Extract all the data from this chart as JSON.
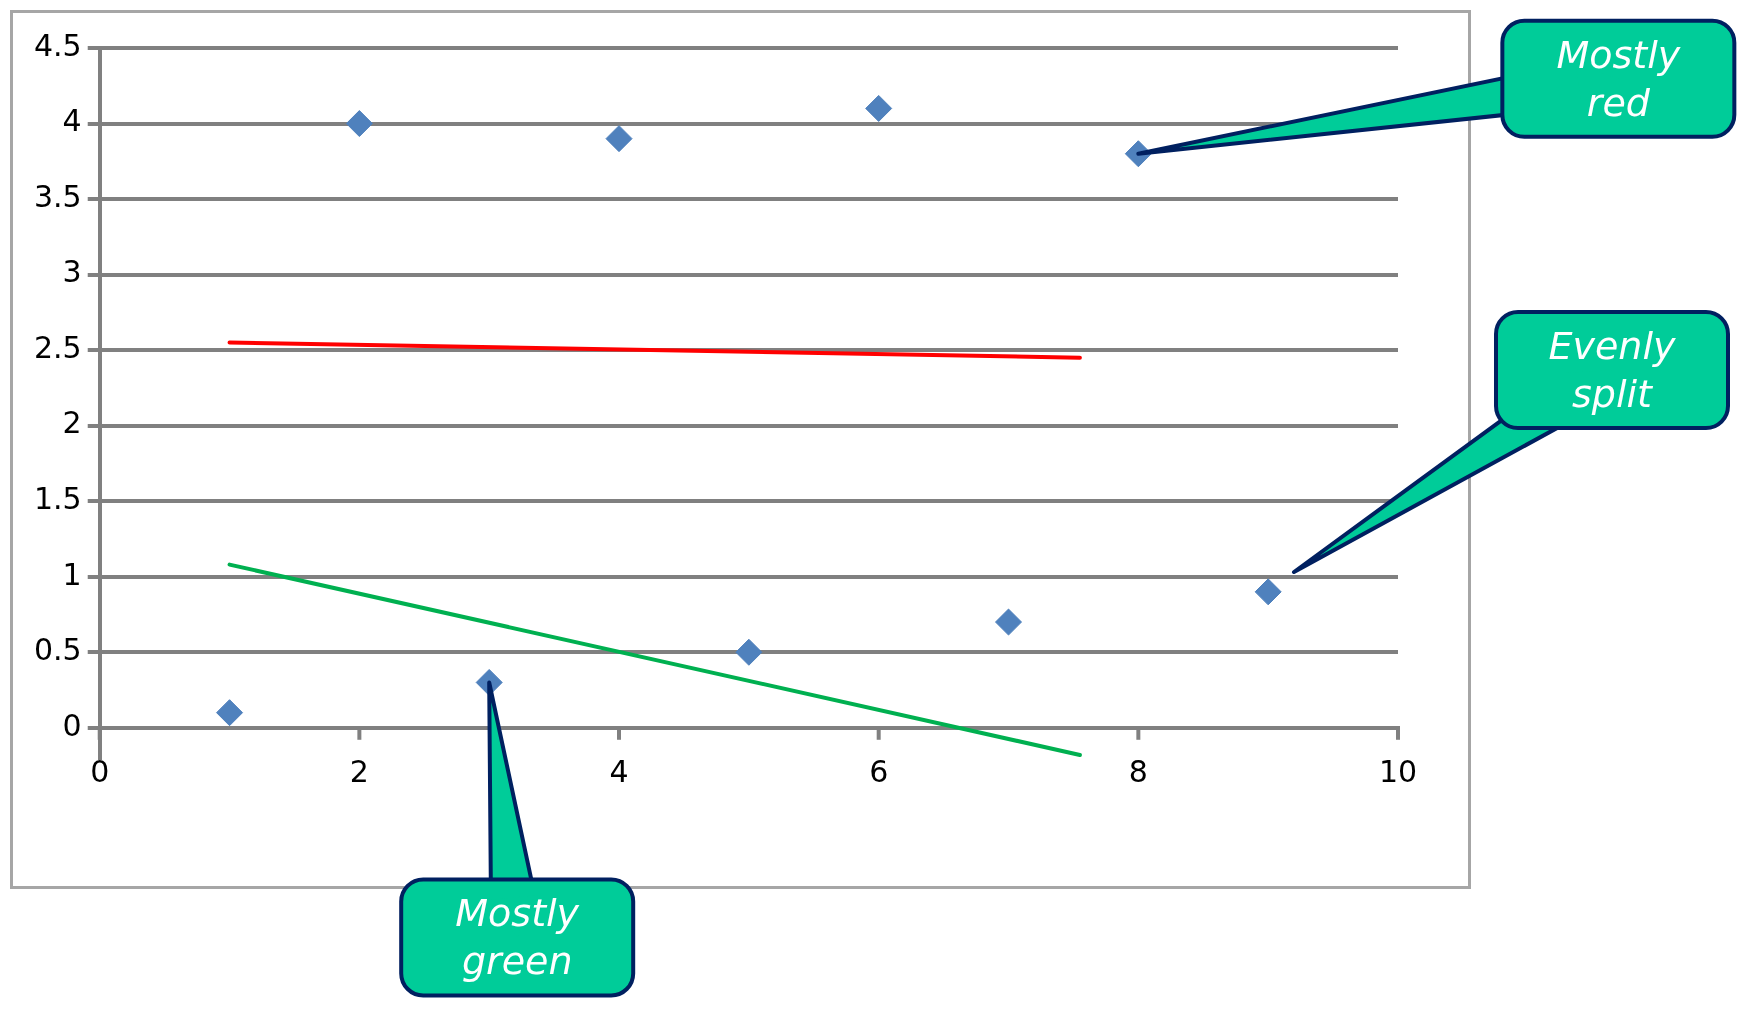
{
  "chart_data": {
    "type": "scatter",
    "series": [
      {
        "color": "#4f81bd",
        "x": [
          1,
          2,
          3,
          4,
          5,
          6,
          7,
          8,
          9
        ],
        "values": [
          0.1,
          4.0,
          0.3,
          3.9,
          0.5,
          4.1,
          0.7,
          3.8,
          0.9
        ]
      },
      {
        "type": "line",
        "marker": "none",
        "color": "#ff0000",
        "x": [
          1,
          7.55
        ],
        "values": [
          2.55,
          2.45
        ]
      },
      {
        "type": "line",
        "marker": "none",
        "color": "#00b050",
        "x": [
          1,
          7.55
        ],
        "values": [
          1.08,
          -0.18
        ]
      }
    ],
    "xlim": [
      0,
      10
    ],
    "xticks": [
      0,
      2,
      4,
      6,
      8,
      10
    ],
    "ylim": [
      -0.2,
      4.5
    ],
    "yticks": [
      0,
      0.5,
      1,
      1.5,
      2,
      2.5,
      3,
      3.5,
      4,
      4.5
    ],
    "grid": "y",
    "legend": false,
    "marker": "diamond",
    "annotations": [
      {
        "text": "Mostly red",
        "x": 8,
        "y": 3.8
      },
      "Evenly split",
      {
        "text": "Mostly green",
        "x": 3,
        "y": 0.3
      }
    ]
  }
}
